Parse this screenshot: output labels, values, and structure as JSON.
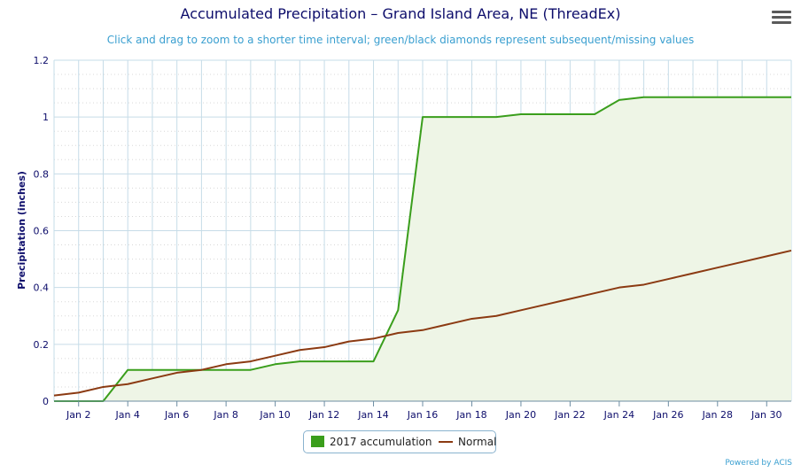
{
  "title": "Accumulated Precipitation – Grand Island Area, NE (ThreadEx)",
  "subtitle": "Click and drag to zoom to a shorter time interval; green/black diamonds represent subsequent/missing values",
  "menu_icon": "hamburger-menu-icon",
  "credits": "Powered by ACIS",
  "legend": [
    {
      "label": "2017 accumulation",
      "color": "#3a9e1c",
      "symbol": "square"
    },
    {
      "label": "Normal",
      "color": "#8b3a12",
      "symbol": "line"
    }
  ],
  "chart_data": {
    "type": "area",
    "title": "Accumulated Precipitation – Grand Island Area, NE (ThreadEx)",
    "ylabel": "Precipitation (inches)",
    "xlabel": "",
    "x_range": [
      1,
      31
    ],
    "ylim": [
      0,
      1.2
    ],
    "y_ticks": [
      0,
      0.2,
      0.4,
      0.6,
      0.8,
      1,
      1.2
    ],
    "y_tick_labels": [
      "0",
      "0.2",
      "0.4",
      "0.6",
      "0.8",
      "1",
      "1.2"
    ],
    "x_ticks": [
      2,
      4,
      6,
      8,
      10,
      12,
      14,
      16,
      18,
      20,
      22,
      24,
      26,
      28,
      30
    ],
    "x_tick_labels": [
      "Jan 2",
      "Jan 4",
      "Jan 6",
      "Jan 8",
      "Jan 10",
      "Jan 12",
      "Jan 14",
      "Jan 16",
      "Jan 18",
      "Jan 20",
      "Jan 22",
      "Jan 24",
      "Jan 26",
      "Jan 28",
      "Jan 30"
    ],
    "grid": true,
    "legend_position": "bottom-center",
    "x": [
      1,
      2,
      3,
      4,
      5,
      6,
      7,
      8,
      9,
      10,
      11,
      12,
      13,
      14,
      15,
      16,
      17,
      18,
      19,
      20,
      21,
      22,
      23,
      24,
      25,
      26,
      27,
      28,
      29,
      30,
      31
    ],
    "series": [
      {
        "name": "2017 accumulation",
        "color": "#3a9e1c",
        "fill": "#eef5e6",
        "values": [
          0,
          0,
          0,
          0.11,
          0.11,
          0.11,
          0.11,
          0.11,
          0.11,
          0.13,
          0.14,
          0.14,
          0.14,
          0.14,
          0.32,
          1.0,
          1.0,
          1.0,
          1.0,
          1.01,
          1.01,
          1.01,
          1.01,
          1.06,
          1.07,
          1.07,
          1.07,
          1.07,
          1.07,
          1.07,
          1.07
        ]
      },
      {
        "name": "Normal",
        "color": "#8b3a12",
        "values": [
          0.02,
          0.03,
          0.05,
          0.06,
          0.08,
          0.1,
          0.11,
          0.13,
          0.14,
          0.16,
          0.18,
          0.19,
          0.21,
          0.22,
          0.24,
          0.25,
          0.27,
          0.29,
          0.3,
          0.32,
          0.34,
          0.36,
          0.38,
          0.4,
          0.41,
          0.43,
          0.45,
          0.47,
          0.49,
          0.51,
          0.53
        ]
      }
    ]
  }
}
